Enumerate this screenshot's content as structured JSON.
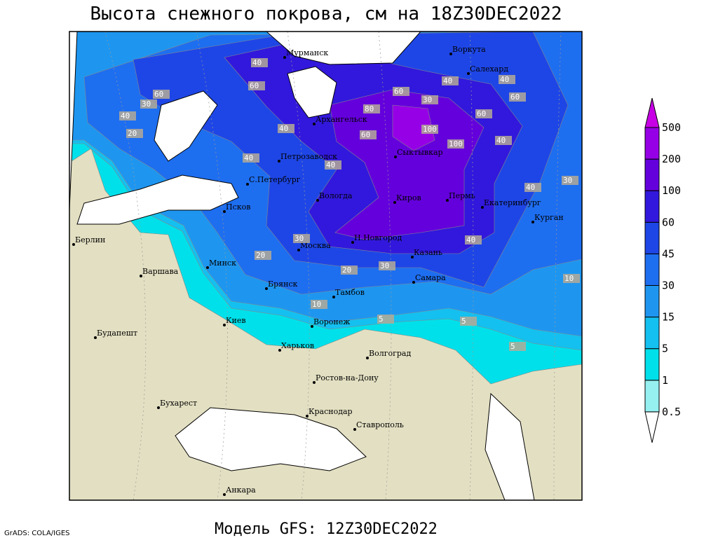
{
  "title": "Высота снежного покрова, см на 18Z30DEC2022",
  "subtitle": "Модель GFS: 12Z30DEC2022",
  "credit": "GrADS: COLA/IGES",
  "legend": {
    "levels": [
      0.5,
      1,
      5,
      15,
      30,
      45,
      60,
      100,
      200,
      500
    ],
    "colors": [
      "#ffffff",
      "#96f0f0",
      "#00e0ea",
      "#14c0f0",
      "#1e96f0",
      "#1e6ef0",
      "#1e46e6",
      "#3218dc",
      "#6400dc",
      "#9600e6",
      "#c800e6"
    ]
  },
  "cities": [
    "Мурманск",
    "Воркута",
    "Салехард",
    "Архангельск",
    "Сыктывкар",
    "Петрозаводск",
    "С.Петербург",
    "Вологда",
    "Киров",
    "Пермь",
    "Екатеринбург",
    "Курган",
    "Псков",
    "Берлин",
    "Н.Новгород",
    "Москва",
    "Казань",
    "Минск",
    "Варшава",
    "Брянск",
    "Тамбов",
    "Самара",
    "Киев",
    "Воронеж",
    "Будапешт",
    "Харьков",
    "Волгоград",
    "Ростов-на-Дону",
    "Бухарест",
    "Краснодар",
    "Ставрополь",
    "Анкара"
  ],
  "contour_labels": [
    "40",
    "60",
    "60",
    "40",
    "20",
    "40",
    "30",
    "40",
    "40",
    "60",
    "80",
    "100",
    "60",
    "100",
    "40",
    "60",
    "40",
    "30",
    "40",
    "60",
    "30",
    "30",
    "20",
    "30",
    "20",
    "10",
    "5",
    "5",
    "5",
    "10",
    "40",
    "40"
  ]
}
